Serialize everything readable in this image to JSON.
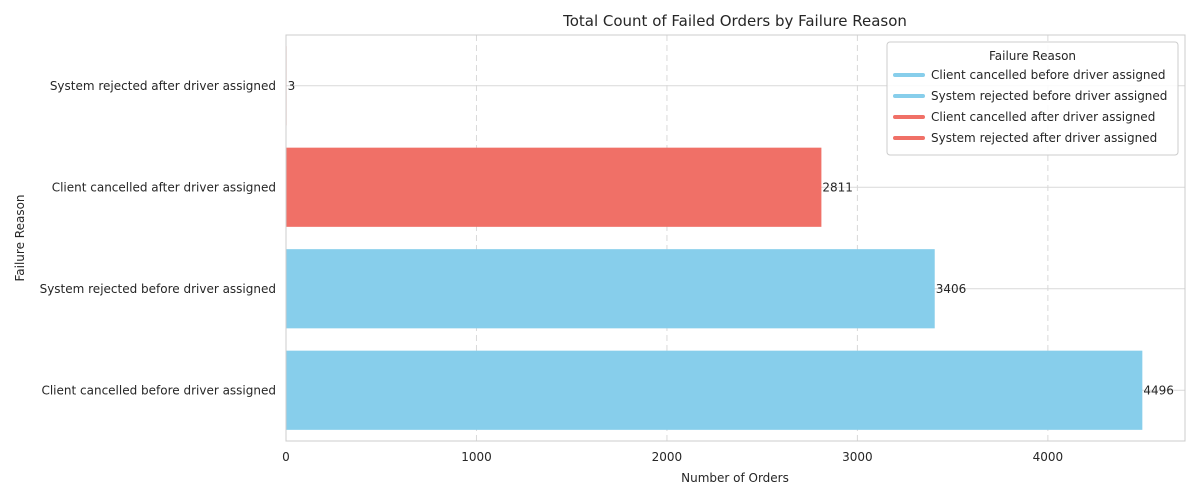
{
  "chart_data": {
    "type": "bar",
    "orientation": "horizontal",
    "title": "Total Count of Failed Orders by Failure Reason",
    "xlabel": "Number of Orders",
    "ylabel": "Failure Reason",
    "xlim": [
      0,
      4720
    ],
    "x_ticks": [
      0,
      1000,
      2000,
      3000,
      4000
    ],
    "grid": true,
    "categories": [
      "Client cancelled before driver assigned",
      "System rejected before driver assigned",
      "Client cancelled after driver assigned",
      "System rejected after driver assigned"
    ],
    "values": [
      4496,
      3406,
      2811,
      3
    ],
    "bar_colors": [
      "#87CEEB",
      "#87CEEB",
      "#F07067",
      "#F07067"
    ],
    "legend": {
      "title": "Failure Reason",
      "placement": "top-right",
      "entries": [
        {
          "label": "Client cancelled before driver assigned",
          "color": "#87CEEB"
        },
        {
          "label": "System rejected before driver assigned",
          "color": "#87CEEB"
        },
        {
          "label": "Client cancelled after driver assigned",
          "color": "#F07067"
        },
        {
          "label": "System rejected after driver assigned",
          "color": "#F07067"
        }
      ]
    }
  }
}
